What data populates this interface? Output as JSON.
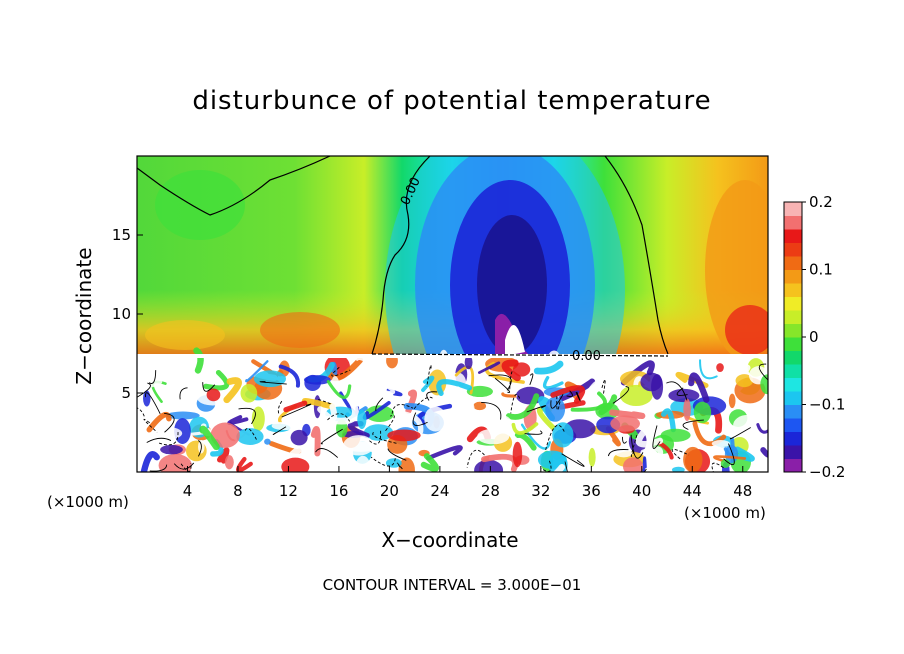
{
  "chart_data": {
    "type": "heatmap",
    "title": "disturbunce of potential temperature",
    "xlabel": "X−coordinate",
    "ylabel": "Z−coordinate",
    "x_unit": "(×1000 m)",
    "x_unit_right": "(×1000 m)",
    "x_ticks": [
      "4",
      "8",
      "12",
      "16",
      "20",
      "24",
      "28",
      "32",
      "36",
      "40",
      "44",
      "48"
    ],
    "x_tick_values": [
      4,
      8,
      12,
      16,
      20,
      24,
      28,
      32,
      36,
      40,
      44,
      48
    ],
    "xlim": [
      0,
      50
    ],
    "y_ticks": [
      "5",
      "10",
      "15"
    ],
    "y_tick_values": [
      5,
      10,
      15
    ],
    "ylim": [
      0,
      20
    ],
    "colorbar": {
      "labels": [
        "0.2",
        "0.1",
        "0",
        "−0.1",
        "−0.2"
      ],
      "values": [
        0.2,
        0.1,
        0,
        -0.1,
        -0.2
      ],
      "range": [
        -0.2,
        0.2
      ],
      "colors": [
        "#8a1fa8",
        "#3a13a8",
        "#1b26d8",
        "#1d56f2",
        "#2a8ef5",
        "#1cc6f0",
        "#1ee6e2",
        "#10e0a6",
        "#12d86a",
        "#3ee03a",
        "#86e62a",
        "#c8ee28",
        "#f0ec26",
        "#f5c21e",
        "#f39a16",
        "#f06b14",
        "#ec3c14",
        "#e81818",
        "#f27070",
        "#f8b4b4"
      ]
    },
    "contour_labels": [
      "0.00",
      "0.00"
    ],
    "annotation": "CONTOUR INTERVAL = 3.000E−01"
  }
}
